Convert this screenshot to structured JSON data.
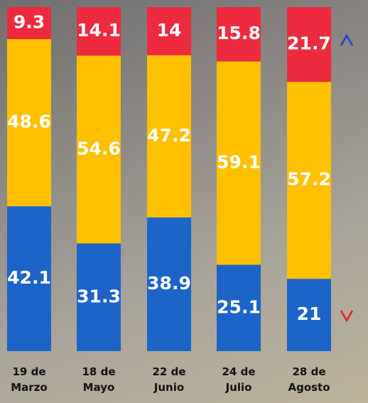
{
  "chart_data": {
    "type": "stacked_bar",
    "categories": [
      "19 de Marzo",
      "18 de Mayo",
      "22 de Junio",
      "24 de Julio",
      "28 de Agosto"
    ],
    "series": [
      {
        "color": "#1c64c8",
        "values": [
          42.1,
          31.3,
          38.9,
          25.1,
          21
        ]
      },
      {
        "color": "#ffc000",
        "values": [
          48.6,
          54.6,
          47.2,
          59.1,
          57.2
        ]
      },
      {
        "color": "#ee2a3e",
        "values": [
          9.3,
          14.1,
          14,
          15.8,
          21.7
        ]
      }
    ]
  }
}
